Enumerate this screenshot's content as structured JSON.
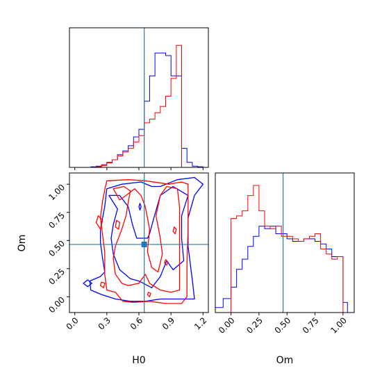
{
  "chart_data": {
    "type": "corner",
    "parameters": [
      "H0",
      "Om"
    ],
    "truth": {
      "H0": 0.65,
      "Om": 0.465
    },
    "colors": {
      "series_a": "#0000ff",
      "series_b": "#ff0000",
      "truth": "#1f77b4"
    },
    "grid": false,
    "legend": "none",
    "h0_axis": {
      "label": "H0",
      "range": [
        -0.05,
        1.25
      ],
      "ticks": [
        0.0,
        0.3,
        0.6,
        0.9,
        1.2
      ],
      "tick_labels": [
        "0.0",
        "0.3",
        "0.6",
        "0.9",
        "1.2"
      ]
    },
    "om_axis": {
      "label": "Om",
      "range": [
        -0.14,
        1.1
      ],
      "ticks": [
        0.0,
        0.25,
        0.5,
        0.75,
        1.0
      ],
      "tick_labels": [
        "0.00",
        "0.25",
        "0.50",
        "0.75",
        "1.00"
      ]
    },
    "h0_histogram": {
      "bin_edges": [
        0.0,
        0.05,
        0.1,
        0.15,
        0.2,
        0.25,
        0.3,
        0.35,
        0.4,
        0.45,
        0.5,
        0.55,
        0.6,
        0.65,
        0.7,
        0.75,
        0.8,
        0.85,
        0.9,
        0.95,
        1.0,
        1.05,
        1.1,
        1.15,
        1.2
      ],
      "series_a": [
        0.0,
        0.0,
        0.0,
        0.005,
        0.01,
        0.02,
        0.04,
        0.06,
        0.1,
        0.13,
        0.17,
        0.24,
        0.3,
        0.52,
        0.72,
        0.9,
        0.9,
        0.88,
        0.72,
        0.72,
        0.15,
        0.04,
        0.01,
        0.005
      ],
      "series_b": [
        0.0,
        0.0,
        0.0,
        0.0,
        0.005,
        0.015,
        0.035,
        0.06,
        0.09,
        0.12,
        0.15,
        0.2,
        0.25,
        0.35,
        0.38,
        0.43,
        0.48,
        0.56,
        0.7,
        0.96,
        0.0,
        0.0,
        0.0,
        0.0
      ]
    },
    "om_histogram": {
      "bin_edges": [
        -0.14,
        -0.07,
        0.0,
        0.05,
        0.1,
        0.15,
        0.2,
        0.25,
        0.3,
        0.35,
        0.4,
        0.45,
        0.5,
        0.55,
        0.6,
        0.65,
        0.7,
        0.75,
        0.8,
        0.85,
        0.9,
        0.95,
        1.0,
        1.04
      ],
      "series_a": [
        0.04,
        0.11,
        0.2,
        0.34,
        0.42,
        0.52,
        0.6,
        0.68,
        0.66,
        0.68,
        0.62,
        0.62,
        0.58,
        0.56,
        0.56,
        0.58,
        0.58,
        0.56,
        0.54,
        0.5,
        0.44,
        0.44,
        0.08
      ],
      "series_b": [
        0.0,
        0.0,
        0.74,
        0.76,
        0.8,
        0.92,
        1.0,
        0.8,
        0.68,
        0.66,
        0.68,
        0.6,
        0.6,
        0.58,
        0.56,
        0.58,
        0.6,
        0.62,
        0.5,
        0.46,
        0.42,
        0.44,
        0.0
      ]
    },
    "contours_2d": {
      "series_a": [
        [
          [
            0.44,
            1.0
          ],
          [
            0.62,
            1.02
          ],
          [
            0.72,
            0.98
          ],
          [
            0.8,
            0.98
          ],
          [
            0.96,
            1.04
          ],
          [
            1.12,
            1.06
          ],
          [
            1.2,
            1.0
          ],
          [
            1.12,
            0.9
          ],
          [
            1.06,
            0.7
          ],
          [
            1.06,
            0.45
          ],
          [
            1.1,
            0.15
          ],
          [
            1.12,
            -0.02
          ],
          [
            0.98,
            -0.02
          ],
          [
            0.8,
            -0.02
          ],
          [
            0.66,
            -0.04
          ],
          [
            0.52,
            -0.04
          ],
          [
            0.38,
            -0.02
          ],
          [
            0.25,
            0.02
          ],
          [
            0.15,
            0.06
          ],
          [
            0.14,
            0.14
          ],
          [
            0.24,
            0.18
          ],
          [
            0.28,
            0.22
          ],
          [
            0.26,
            0.34
          ],
          [
            0.24,
            0.48
          ],
          [
            0.24,
            0.6
          ],
          [
            0.28,
            0.8
          ],
          [
            0.3,
            0.96
          ],
          [
            0.44,
            1.0
          ]
        ],
        [
          [
            0.32,
            0.9
          ],
          [
            0.4,
            0.78
          ],
          [
            0.36,
            0.64
          ],
          [
            0.34,
            0.52
          ],
          [
            0.36,
            0.38
          ],
          [
            0.42,
            0.24
          ],
          [
            0.52,
            0.16
          ],
          [
            0.6,
            0.14
          ],
          [
            0.72,
            0.08
          ],
          [
            0.8,
            0.18
          ],
          [
            0.86,
            0.32
          ],
          [
            0.92,
            0.24
          ],
          [
            1.02,
            0.32
          ],
          [
            1.0,
            0.52
          ],
          [
            1.0,
            0.72
          ],
          [
            1.06,
            0.9
          ],
          [
            0.92,
            0.98
          ],
          [
            0.8,
            0.9
          ],
          [
            0.74,
            0.7
          ],
          [
            0.7,
            0.56
          ],
          [
            0.68,
            0.52
          ],
          [
            0.58,
            0.52
          ],
          [
            0.54,
            0.64
          ],
          [
            0.5,
            0.8
          ],
          [
            0.42,
            0.9
          ],
          [
            0.32,
            0.9
          ]
        ],
        [
          [
            0.08,
            0.12
          ],
          [
            0.12,
            0.09
          ],
          [
            0.16,
            0.12
          ],
          [
            0.12,
            0.15
          ],
          [
            0.08,
            0.12
          ]
        ],
        [
          [
            0.6,
            0.8
          ],
          [
            0.61,
            0.77
          ],
          [
            0.62,
            0.8
          ],
          [
            0.61,
            0.83
          ],
          [
            0.6,
            0.8
          ]
        ]
      ],
      "series_b": [
        [
          [
            0.3,
            1.03
          ],
          [
            0.5,
            1.04
          ],
          [
            0.66,
            1.03
          ],
          [
            0.88,
            1.0
          ],
          [
            1.0,
            1.02
          ],
          [
            1.06,
            1.0
          ],
          [
            1.06,
            0.6
          ],
          [
            1.05,
            0.3
          ],
          [
            1.05,
            0.0
          ],
          [
            1.0,
            -0.06
          ],
          [
            0.85,
            -0.06
          ],
          [
            0.7,
            -0.04
          ],
          [
            0.55,
            -0.05
          ],
          [
            0.45,
            -0.04
          ],
          [
            0.38,
            0.04
          ],
          [
            0.3,
            0.06
          ],
          [
            0.28,
            0.2
          ],
          [
            0.28,
            0.4
          ],
          [
            0.26,
            0.55
          ],
          [
            0.24,
            0.7
          ],
          [
            0.26,
            0.85
          ],
          [
            0.28,
            0.95
          ],
          [
            0.3,
            1.03
          ]
        ],
        [
          [
            0.36,
            0.96
          ],
          [
            0.46,
            0.98
          ],
          [
            0.52,
            0.94
          ],
          [
            0.5,
            0.84
          ],
          [
            0.48,
            0.72
          ],
          [
            0.44,
            0.6
          ],
          [
            0.38,
            0.45
          ],
          [
            0.36,
            0.34
          ],
          [
            0.38,
            0.2
          ],
          [
            0.44,
            0.12
          ],
          [
            0.5,
            0.1
          ],
          [
            0.6,
            0.12
          ],
          [
            0.66,
            0.2
          ],
          [
            0.7,
            0.12
          ],
          [
            0.8,
            0.06
          ],
          [
            0.9,
            0.04
          ],
          [
            0.98,
            0.06
          ],
          [
            0.98,
            0.3
          ],
          [
            0.98,
            0.6
          ],
          [
            0.98,
            0.8
          ],
          [
            0.96,
            0.96
          ],
          [
            0.86,
            0.98
          ],
          [
            0.8,
            0.9
          ],
          [
            0.76,
            0.72
          ],
          [
            0.8,
            0.52
          ],
          [
            0.82,
            0.38
          ],
          [
            0.78,
            0.22
          ],
          [
            0.72,
            0.26
          ],
          [
            0.68,
            0.4
          ],
          [
            0.7,
            0.6
          ],
          [
            0.66,
            0.8
          ],
          [
            0.62,
            0.9
          ],
          [
            0.56,
            0.96
          ],
          [
            0.48,
            0.9
          ],
          [
            0.42,
            0.86
          ],
          [
            0.36,
            0.96
          ]
        ],
        [
          [
            0.2,
            0.66
          ],
          [
            0.24,
            0.6
          ],
          [
            0.26,
            0.68
          ],
          [
            0.22,
            0.72
          ],
          [
            0.2,
            0.66
          ]
        ],
        [
          [
            0.38,
            0.62
          ],
          [
            0.41,
            0.6
          ],
          [
            0.42,
            0.66
          ],
          [
            0.39,
            0.68
          ],
          [
            0.38,
            0.62
          ]
        ],
        [
          [
            0.24,
            0.1
          ],
          [
            0.27,
            0.08
          ],
          [
            0.28,
            0.12
          ],
          [
            0.25,
            0.13
          ],
          [
            0.24,
            0.1
          ]
        ],
        [
          [
            0.68,
            0.02
          ],
          [
            0.7,
            0.0
          ],
          [
            0.71,
            0.03
          ],
          [
            0.69,
            0.04
          ],
          [
            0.68,
            0.02
          ]
        ],
        [
          [
            0.84,
            0.3
          ],
          [
            0.86,
            0.28
          ],
          [
            0.87,
            0.31
          ],
          [
            0.85,
            0.33
          ],
          [
            0.84,
            0.3
          ]
        ],
        [
          [
            0.92,
            0.58
          ],
          [
            0.94,
            0.56
          ],
          [
            0.95,
            0.6
          ],
          [
            0.93,
            0.62
          ],
          [
            0.92,
            0.58
          ]
        ]
      ]
    }
  }
}
